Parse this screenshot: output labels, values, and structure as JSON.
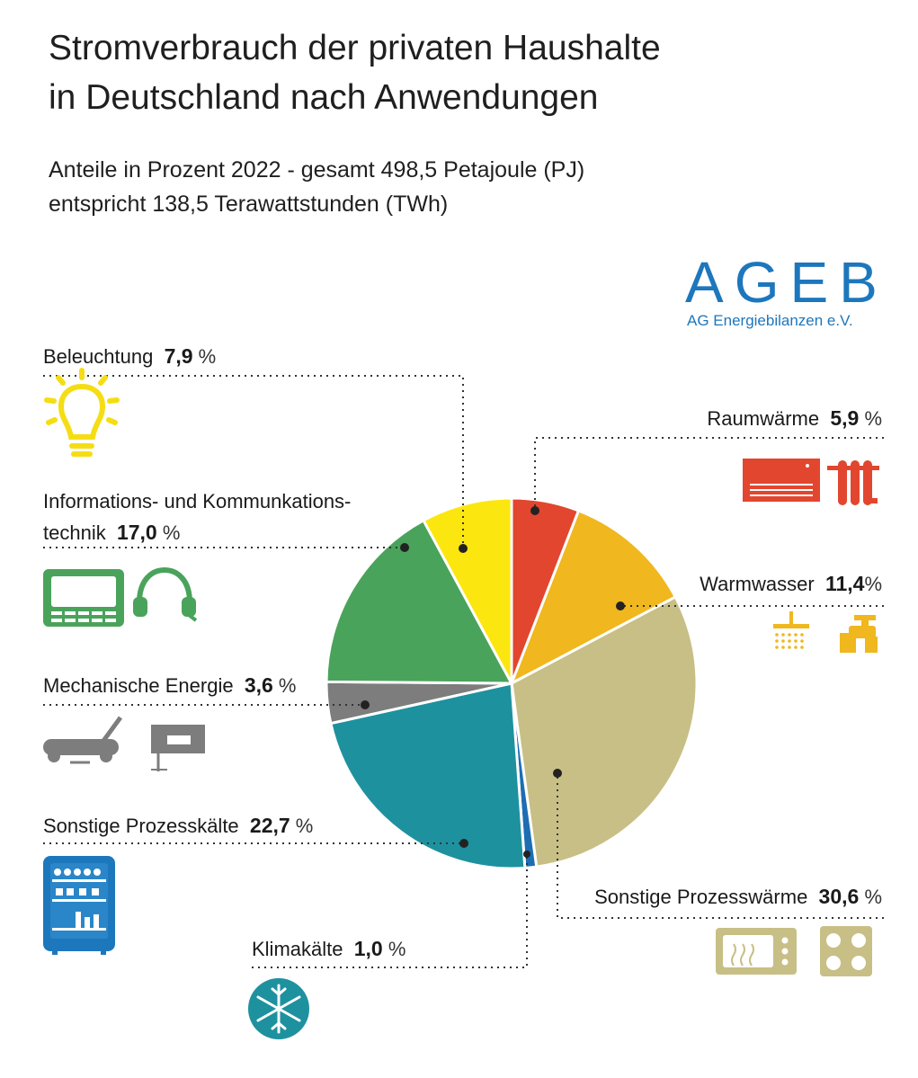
{
  "header": {
    "title_line1": "Stromverbrauch der privaten Haushalte",
    "title_line2": "in Deutschland nach Anwendungen",
    "subtitle_line1": "Anteile in Prozent 2022 - gesamt 498,5 Petajoule (PJ)",
    "subtitle_line2": "entspricht 138,5 Terawattstunden (TWh)"
  },
  "logo": {
    "name": "AGEB",
    "full_name": "AG Energiebilanzen e.V."
  },
  "colors": {
    "raumwaerme": "#e2462f",
    "warmwasser": "#f0b71e",
    "prozesswaerme": "#c8bf86",
    "klimakaelte": "#1d6db3",
    "prozesskaelte": "#1e919f",
    "mechanisch": "#7d7d7d",
    "ikt": "#4aa35b",
    "beleuchtung": "#fce610",
    "logo": "#1d77bd"
  },
  "labels": {
    "beleuchtung": {
      "name": "Beleuchtung",
      "value": "7,9",
      "unit": "%"
    },
    "ikt": {
      "name_line1": "Informations- und Kommunkations-",
      "name_line2": "technik",
      "value": "17,0",
      "unit": "%"
    },
    "mechanisch": {
      "name": "Mechanische Energie",
      "value": "3,6",
      "unit": "%"
    },
    "prozesskaelte": {
      "name": "Sonstige Prozesskälte",
      "value": "22,7",
      "unit": "%"
    },
    "klimakaelte": {
      "name": "Klimakälte",
      "value": "1,0",
      "unit": "%"
    },
    "raumwaerme": {
      "name": "Raumwärme",
      "value": "5,9",
      "unit": "%"
    },
    "warmwasser": {
      "name": "Warmwasser",
      "value": "11,4",
      "unit": "%"
    },
    "prozesswaerme": {
      "name": "Sonstige Prozesswärme",
      "value": "30,6",
      "unit": "%"
    }
  },
  "chart_data": {
    "type": "pie",
    "start_angle": "12 o'clock, clockwise",
    "slices": [
      {
        "key": "raumwaerme",
        "label": "Raumwärme",
        "value": 5.9
      },
      {
        "key": "warmwasser",
        "label": "Warmwasser",
        "value": 11.4
      },
      {
        "key": "prozesswaerme",
        "label": "Sonstige Prozesswärme",
        "value": 30.6
      },
      {
        "key": "klimakaelte",
        "label": "Klimakälte",
        "value": 1.0
      },
      {
        "key": "prozesskaelte",
        "label": "Sonstige Prozesskälte",
        "value": 22.7
      },
      {
        "key": "mechanisch",
        "label": "Mechanische Energie",
        "value": 3.6
      },
      {
        "key": "ikt",
        "label": "Informations- und Kommunkationstechnik",
        "value": 17.0
      },
      {
        "key": "beleuchtung",
        "label": "Beleuchtung",
        "value": 7.9
      }
    ],
    "icons": {
      "beleuchtung": [
        "light-bulb-icon"
      ],
      "ikt": [
        "monitor-icon",
        "headphones-icon"
      ],
      "mechanisch": [
        "lawn-mower-icon",
        "jigsaw-icon"
      ],
      "prozesskaelte": [
        "refrigerator-icon"
      ],
      "klimakaelte": [
        "snowflake-icon"
      ],
      "raumwaerme": [
        "air-conditioner-icon",
        "radiator-icon"
      ],
      "warmwasser": [
        "shower-icon",
        "faucet-icon"
      ],
      "prozesswaerme": [
        "microwave-icon",
        "stove-icon"
      ]
    }
  }
}
